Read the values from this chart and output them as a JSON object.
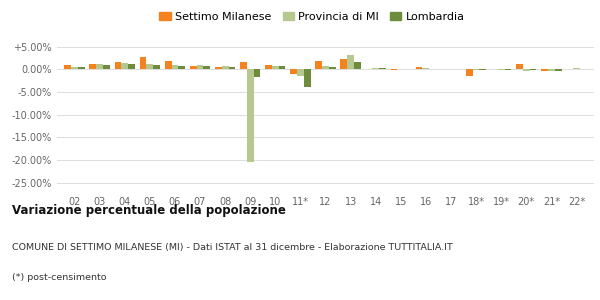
{
  "categories": [
    "02",
    "03",
    "04",
    "05",
    "06",
    "07",
    "08",
    "09",
    "10",
    "11*",
    "12",
    "13",
    "14",
    "15",
    "16",
    "17",
    "18*",
    "19*",
    "20*",
    "21*",
    "22*"
  ],
  "settimo": [
    1.0,
    1.2,
    1.7,
    2.6,
    1.8,
    0.7,
    0.5,
    1.5,
    0.9,
    -1.0,
    1.8,
    2.2,
    0.0,
    -0.2,
    0.6,
    0.0,
    -1.5,
    0.0,
    1.1,
    -0.3,
    0.1
  ],
  "provincia": [
    0.5,
    1.2,
    1.4,
    1.2,
    0.9,
    0.9,
    0.8,
    -20.5,
    0.8,
    -1.5,
    0.8,
    3.2,
    0.3,
    0.0,
    0.2,
    0.0,
    -0.1,
    -0.1,
    -0.3,
    -0.4,
    0.2
  ],
  "lombardia": [
    0.4,
    1.0,
    1.2,
    1.0,
    0.8,
    0.7,
    0.6,
    -1.8,
    0.7,
    -3.8,
    0.6,
    1.5,
    0.2,
    0.0,
    0.1,
    0.0,
    -0.1,
    -0.1,
    -0.2,
    -0.3,
    0.1
  ],
  "color_settimo": "#f4821e",
  "color_provincia": "#b5c98e",
  "color_lombardia": "#6e8c3e",
  "title": "Variazione percentuale della popolazione",
  "subtitle": "COMUNE DI SETTIMO MILANESE (MI) - Dati ISTAT al 31 dicembre - Elaborazione TUTTITALIA.IT",
  "footnote": "(*) post-censimento",
  "legend_labels": [
    "Settimo Milanese",
    "Provincia di MI",
    "Lombardia"
  ],
  "ylim": [
    -27,
    6
  ],
  "yticks": [
    5,
    0,
    -5,
    -10,
    -15,
    -20,
    -25
  ],
  "bg_color": "#ffffff",
  "grid_color": "#dddddd"
}
